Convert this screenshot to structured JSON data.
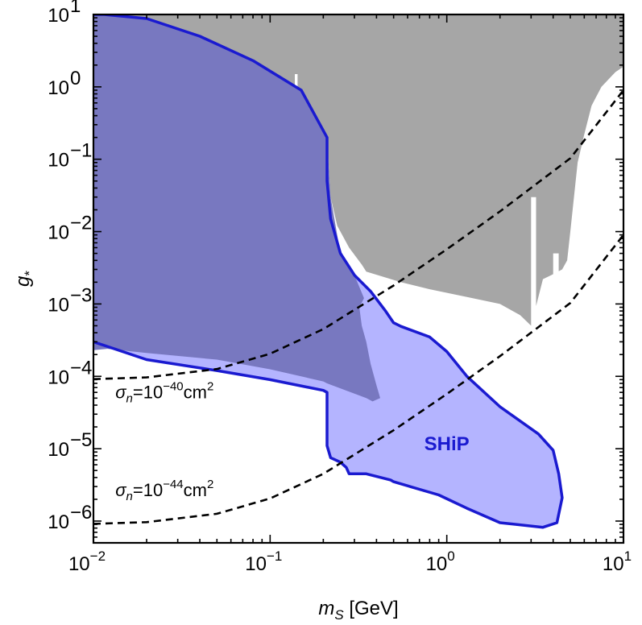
{
  "chart_data": {
    "type": "area",
    "xscale": "log",
    "yscale": "log",
    "xlim": [
      0.01,
      10
    ],
    "ylim": [
      5e-07,
      10
    ],
    "grid": false,
    "xlabel": {
      "base": "m",
      "sub": "S",
      "unit": " [GeV]"
    },
    "ylabel": {
      "base": "g",
      "sub": "*"
    },
    "xticks": [
      {
        "value": 0.01,
        "mant": "10",
        "exp": "−2"
      },
      {
        "value": 0.1,
        "mant": "10",
        "exp": "−1"
      },
      {
        "value": 1,
        "mant": "10",
        "exp": "0"
      },
      {
        "value": 10,
        "mant": "10",
        "exp": "1"
      }
    ],
    "yticks": [
      {
        "value": 1e-06,
        "mant": "10",
        "exp": "−6"
      },
      {
        "value": 1e-05,
        "mant": "10",
        "exp": "−5"
      },
      {
        "value": 0.0001,
        "mant": "10",
        "exp": "−4"
      },
      {
        "value": 0.001,
        "mant": "10",
        "exp": "−3"
      },
      {
        "value": 0.01,
        "mant": "10",
        "exp": "−2"
      },
      {
        "value": 0.1,
        "mant": "10",
        "exp": "−1"
      },
      {
        "value": 1,
        "mant": "10",
        "exp": "0"
      },
      {
        "value": 10,
        "mant": "10",
        "exp": "1"
      }
    ],
    "colors": {
      "excluded": "#a6a6a6",
      "overlap": "#7878c0",
      "ship_fill": "#b4b4ff",
      "ship_line": "#1a1ad0",
      "dashed": "#000000"
    },
    "excluded_region": [
      [
        0.0115,
        10
      ],
      [
        10,
        10
      ],
      [
        10,
        1.9
      ],
      [
        9,
        1.6
      ],
      [
        7.5,
        1.0
      ],
      [
        6.6,
        0.55
      ],
      [
        6.0,
        0.22
      ],
      [
        5.5,
        0.09
      ],
      [
        5.0,
        0.01
      ],
      [
        4.8,
        0.004
      ],
      [
        4.5,
        0.003
      ],
      [
        3.9,
        0.0025
      ],
      [
        3.5,
        0.0022
      ],
      [
        3.0,
        0.0005
      ],
      [
        2.6,
        0.0007
      ],
      [
        2.0,
        0.001
      ],
      [
        1.3,
        0.00125
      ],
      [
        0.8,
        0.0016
      ],
      [
        0.55,
        0.002
      ],
      [
        0.35,
        0.0028
      ],
      [
        0.33,
        0.0035
      ],
      [
        0.28,
        0.006
      ],
      [
        0.24,
        0.012
      ],
      [
        0.22,
        0.03
      ],
      [
        0.21,
        0.2
      ],
      [
        0.15,
        0.9
      ],
      [
        0.08,
        2.3
      ],
      [
        0.04,
        5.0
      ],
      [
        0.02,
        8.8
      ],
      [
        0.0115,
        10
      ]
    ],
    "white_gaps": [
      [
        [
          0.138,
          1.5
        ],
        [
          0.143,
          1.5
        ],
        [
          0.143,
          0.12
        ],
        [
          0.138,
          0.12
        ]
      ],
      [
        [
          3.0,
          0.03
        ],
        [
          3.2,
          0.03
        ],
        [
          3.2,
          0.0005
        ],
        [
          3.0,
          0.0005
        ]
      ],
      [
        [
          4.0,
          0.005
        ],
        [
          4.3,
          0.005
        ],
        [
          4.3,
          0.0016
        ],
        [
          4.0,
          0.0016
        ]
      ]
    ],
    "overlap_region": [
      [
        0.01,
        0.00023
      ],
      [
        0.012,
        0.00024
      ],
      [
        0.02,
        0.00021
      ],
      [
        0.05,
        0.00017
      ],
      [
        0.1,
        0.000125
      ],
      [
        0.2,
        8.5e-05
      ],
      [
        0.21,
        8e-05
      ],
      [
        0.35,
        5e-05
      ],
      [
        0.38,
        4.5e-05
      ],
      [
        0.42,
        5e-05
      ],
      [
        0.4,
        7.5e-05
      ],
      [
        0.37,
        0.00015
      ],
      [
        0.35,
        0.0003
      ],
      [
        0.33,
        0.0005
      ],
      [
        0.32,
        0.0009
      ],
      [
        0.34,
        0.0012
      ],
      [
        0.3,
        0.0025
      ],
      [
        0.25,
        0.005
      ],
      [
        0.22,
        0.03
      ],
      [
        0.21,
        0.2
      ],
      [
        0.15,
        0.9
      ],
      [
        0.08,
        2.3
      ],
      [
        0.04,
        5.0
      ],
      [
        0.02,
        8.8
      ],
      [
        0.0115,
        10
      ],
      [
        0.01,
        10
      ]
    ],
    "series": [
      {
        "name": "SHiP",
        "type": "region",
        "boundary": [
          [
            0.01,
            10
          ],
          [
            0.0115,
            10
          ],
          [
            0.02,
            8.8
          ],
          [
            0.04,
            5.0
          ],
          [
            0.08,
            2.3
          ],
          [
            0.15,
            0.9
          ],
          [
            0.21,
            0.2
          ],
          [
            0.21,
            0.05
          ],
          [
            0.22,
            0.015
          ],
          [
            0.25,
            0.005
          ],
          [
            0.3,
            0.0025
          ],
          [
            0.37,
            0.0015
          ],
          [
            0.45,
            0.0008
          ],
          [
            0.5,
            0.00055
          ],
          [
            0.55,
            0.00049
          ],
          [
            0.8,
            0.00035
          ],
          [
            1.0,
            0.00022
          ],
          [
            1.3,
            0.0001
          ],
          [
            2.0,
            3.8e-05
          ],
          [
            3.3,
            1.6e-05
          ],
          [
            4.0,
            9.5e-06
          ],
          [
            4.3,
            4.5e-06
          ],
          [
            4.5,
            2.1e-06
          ],
          [
            4.2,
            9.5e-07
          ],
          [
            3.5,
            8.2e-07
          ],
          [
            2.0,
            9.5e-07
          ],
          [
            1.3,
            1.5e-06
          ],
          [
            0.9,
            2.3e-06
          ],
          [
            0.5,
            3.5e-06
          ],
          [
            0.48,
            3.7e-06
          ],
          [
            0.35,
            4.5e-06
          ],
          [
            0.3,
            4.5e-06
          ],
          [
            0.28,
            4.5e-06
          ],
          [
            0.27,
            5.5e-06
          ],
          [
            0.25,
            6.5e-06
          ],
          [
            0.22,
            7.5e-06
          ],
          [
            0.21,
            1.1e-05
          ],
          [
            0.21,
            6e-05
          ],
          [
            0.2,
            6.4e-05
          ],
          [
            0.1,
            9e-05
          ],
          [
            0.05,
            0.00012
          ],
          [
            0.02,
            0.00017
          ],
          [
            0.01,
            0.0003
          ]
        ]
      },
      {
        "name": "σn=10⁻⁴⁰cm²",
        "type": "dashed",
        "points": [
          [
            0.01,
            9.15e-05
          ],
          [
            0.02,
            9.66e-05
          ],
          [
            0.05,
            0.000126
          ],
          [
            0.1,
            0.000205
          ],
          [
            0.2,
            0.00045
          ],
          [
            0.5,
            0.0018
          ],
          [
            1,
            0.0057
          ],
          [
            2,
            0.019
          ],
          [
            5,
            0.103
          ],
          [
            10,
            0.9
          ]
        ]
      },
      {
        "name": "σn=10⁻⁴⁴cm²",
        "type": "dashed",
        "points": [
          [
            0.01,
            9.15e-07
          ],
          [
            0.02,
            9.66e-07
          ],
          [
            0.05,
            1.26e-06
          ],
          [
            0.1,
            2.05e-06
          ],
          [
            0.2,
            4.5e-06
          ],
          [
            0.5,
            1.8e-05
          ],
          [
            1,
            5.7e-05
          ],
          [
            2,
            0.00019
          ],
          [
            5,
            0.00103
          ],
          [
            10,
            0.009
          ]
        ]
      }
    ],
    "annotations": [
      {
        "text": "SHiP",
        "x": 1.0,
        "y": 9.5e-06,
        "style": "series"
      },
      {
        "sigma": "σ",
        "sub": "n",
        "pre": "=10",
        "exp": "−40",
        "post": "cm",
        "pexp": "2",
        "x": 0.0125,
        "y": 5e-05,
        "style": "plain"
      },
      {
        "sigma": "σ",
        "sub": "n",
        "pre": "=10",
        "exp": "−44",
        "post": "cm",
        "pexp": "2",
        "x": 0.0125,
        "y": 2.2e-06,
        "style": "plain"
      }
    ]
  }
}
